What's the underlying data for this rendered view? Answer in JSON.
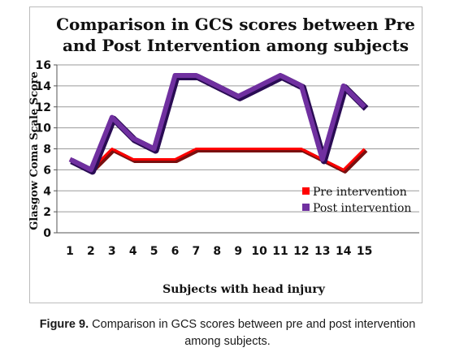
{
  "chart_data": {
    "type": "line",
    "title_lines": [
      "Comparison in GCS scores between Pre",
      "and Post Intervention among subjects"
    ],
    "xlabel": "Subjects with head injury",
    "ylabel": "Glasgow Coma Scale Score",
    "categories": [
      "1",
      "2",
      "3",
      "4",
      "5",
      "6",
      "7",
      "8",
      "9",
      "10",
      "11",
      "12",
      "13",
      "14",
      "15"
    ],
    "ylim": [
      0,
      16
    ],
    "yticks": [
      0,
      2,
      4,
      6,
      8,
      10,
      12,
      14,
      16
    ],
    "grid": true,
    "legend_position": "lower-right",
    "series": [
      {
        "name": "Pre intervention",
        "color": "#ff0000",
        "shadow": "#7a1010",
        "values": [
          7,
          6,
          8,
          7,
          7,
          7,
          8,
          8,
          8,
          8,
          8,
          8,
          7,
          6,
          8
        ]
      },
      {
        "name": "Post intervention",
        "color": "#7030a0",
        "shadow": "#2a0c54",
        "values": [
          7,
          6,
          11,
          9,
          8,
          15,
          15,
          14,
          13,
          14,
          15,
          14,
          7,
          14,
          12
        ]
      }
    ]
  },
  "caption": {
    "label": "Figure 9.",
    "line1_rest": " Comparison in GCS scores between pre and post intervention",
    "line2": "among subjects."
  }
}
